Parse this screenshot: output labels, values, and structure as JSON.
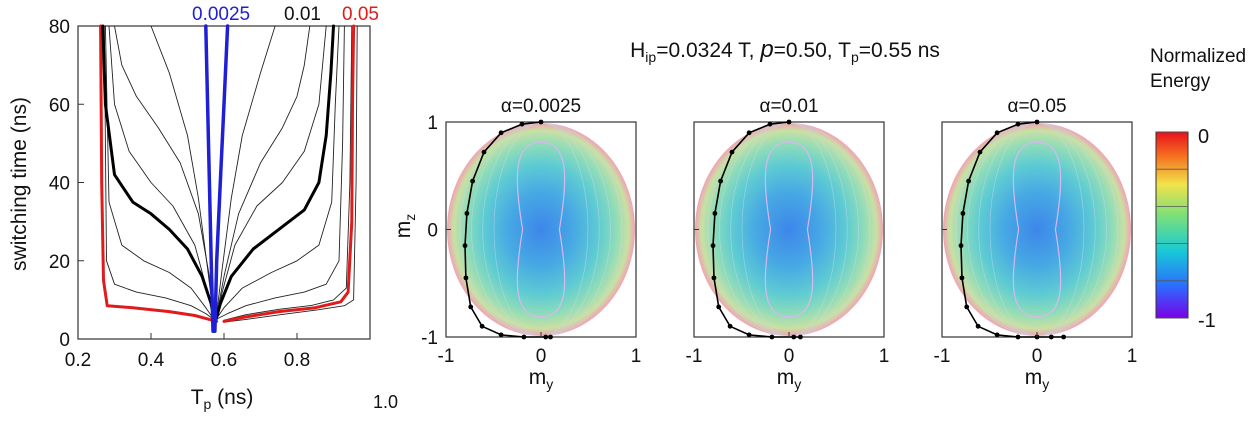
{
  "chart_data": [
    {
      "type": "line",
      "title": "",
      "xlabel": "T",
      "xlabel_sub": "p",
      "xlabel_unit": " (ns)",
      "ylabel": "switching time (ns)",
      "xlim": [
        0.2,
        1.0
      ],
      "ylim": [
        0,
        80
      ],
      "x_ticks": [
        "0.2",
        "0.4",
        "0.6",
        "0.8"
      ],
      "x_tick_values": [
        0.2,
        0.4,
        0.6,
        0.8
      ],
      "x_extra_tick": "1.0",
      "y_ticks": [
        "0",
        "20",
        "40",
        "60",
        "80"
      ],
      "y_tick_values": [
        0,
        20,
        40,
        60,
        80
      ],
      "grid": false,
      "series": [
        {
          "name": "0.0025",
          "color": "#1f1fd6",
          "width": 3.5,
          "x": [
            0.55,
            0.555,
            0.56,
            0.565,
            0.57
          ],
          "y": [
            80,
            60,
            40,
            20,
            2
          ]
        },
        {
          "name": "0.0025",
          "color": "#1f1fd6",
          "width": 3.5,
          "x": [
            0.61,
            0.6,
            0.59,
            0.58,
            0.575
          ],
          "y": [
            80,
            60,
            40,
            20,
            2
          ]
        },
        {
          "name": "0.01",
          "color": "#000000",
          "width": 3,
          "x": [
            0.268,
            0.275,
            0.3,
            0.35,
            0.4,
            0.45,
            0.5,
            0.54,
            0.565,
            0.572
          ],
          "y": [
            80,
            60,
            42,
            35,
            32,
            28,
            23,
            16,
            9,
            5
          ]
        },
        {
          "name": "0.01",
          "color": "#000000",
          "width": 3,
          "x": [
            0.578,
            0.59,
            0.62,
            0.68,
            0.75,
            0.82,
            0.86,
            0.88,
            0.893,
            0.9
          ],
          "y": [
            5,
            9,
            16,
            23,
            28,
            33,
            40,
            52,
            68,
            80
          ]
        },
        {
          "name": "0.05",
          "color": "#e01b1b",
          "width": 3,
          "x": [
            0.262,
            0.265,
            0.27,
            0.28,
            0.35,
            0.45,
            0.52,
            0.56,
            0.58
          ],
          "y": [
            80,
            40,
            15,
            8.5,
            8,
            7,
            6,
            5,
            4.5
          ]
        },
        {
          "name": "0.05",
          "color": "#e01b1b",
          "width": 3,
          "x": [
            0.6,
            0.65,
            0.75,
            0.85,
            0.92,
            0.94,
            0.95,
            0.952,
            0.955
          ],
          "y": [
            4.5,
            5.5,
            7,
            8,
            9.5,
            12,
            30,
            60,
            80
          ]
        },
        {
          "name": "",
          "color": "#222222",
          "width": 0.9,
          "x": [
            0.3,
            0.32,
            0.36,
            0.42,
            0.48,
            0.53,
            0.56,
            0.572
          ],
          "y": [
            80,
            70,
            62,
            54,
            45,
            32,
            16,
            5
          ]
        },
        {
          "name": "",
          "color": "#222222",
          "width": 0.9,
          "x": [
            0.578,
            0.6,
            0.64,
            0.7,
            0.76,
            0.8,
            0.82,
            0.835
          ],
          "y": [
            5,
            16,
            32,
            45,
            54,
            62,
            70,
            80
          ]
        },
        {
          "name": "",
          "color": "#222222",
          "width": 0.9,
          "x": [
            0.4,
            0.45,
            0.5,
            0.53,
            0.555,
            0.572
          ],
          "y": [
            80,
            68,
            52,
            36,
            18,
            5
          ]
        },
        {
          "name": "",
          "color": "#222222",
          "width": 0.9,
          "x": [
            0.578,
            0.595,
            0.62,
            0.65,
            0.7,
            0.74
          ],
          "y": [
            5,
            18,
            36,
            52,
            68,
            80
          ]
        },
        {
          "name": "",
          "color": "#222222",
          "width": 0.9,
          "x": [
            0.285,
            0.3,
            0.34,
            0.4,
            0.46,
            0.52,
            0.555,
            0.572
          ],
          "y": [
            80,
            60,
            48,
            40,
            34,
            24,
            12,
            5
          ]
        },
        {
          "name": "",
          "color": "#222222",
          "width": 0.9,
          "x": [
            0.578,
            0.595,
            0.63,
            0.69,
            0.76,
            0.82,
            0.86,
            0.88
          ],
          "y": [
            5,
            12,
            24,
            34,
            40,
            48,
            60,
            80
          ]
        },
        {
          "name": "",
          "color": "#222222",
          "width": 0.9,
          "x": [
            0.275,
            0.285,
            0.32,
            0.38,
            0.45,
            0.51,
            0.55,
            0.572
          ],
          "y": [
            80,
            35,
            24,
            20,
            17,
            13,
            8,
            5
          ]
        },
        {
          "name": "",
          "color": "#222222",
          "width": 0.9,
          "x": [
            0.578,
            0.6,
            0.65,
            0.73,
            0.8,
            0.86,
            0.895,
            0.905,
            0.915
          ],
          "y": [
            5,
            8,
            13,
            17,
            20,
            24,
            35,
            60,
            80
          ]
        },
        {
          "name": "",
          "color": "#222222",
          "width": 0.9,
          "x": [
            0.272,
            0.278,
            0.3,
            0.36,
            0.44,
            0.51,
            0.55,
            0.572
          ],
          "y": [
            80,
            20,
            14,
            12,
            10.5,
            8.5,
            6.5,
            5
          ]
        },
        {
          "name": "",
          "color": "#222222",
          "width": 0.9,
          "x": [
            0.578,
            0.61,
            0.66,
            0.74,
            0.82,
            0.88,
            0.915,
            0.925,
            0.93
          ],
          "y": [
            5,
            6.5,
            8.5,
            10.5,
            12,
            14,
            20,
            50,
            80
          ]
        },
        {
          "name": "",
          "color": "#222222",
          "width": 0.9,
          "x": [
            0.6,
            0.66,
            0.75,
            0.84,
            0.9,
            0.935,
            0.945,
            0.95
          ],
          "y": [
            4.8,
            6.2,
            7.6,
            8.6,
            10,
            13,
            40,
            80
          ]
        },
        {
          "name": "",
          "color": "#222222",
          "width": 0.9,
          "x": [
            0.6,
            0.66,
            0.76,
            0.86,
            0.93,
            0.955,
            0.962,
            0.965
          ],
          "y": [
            4.3,
            5,
            6.3,
            7.5,
            8.5,
            10,
            40,
            80
          ]
        }
      ]
    },
    {
      "type": "heatmap",
      "title": "H",
      "title_sub": "ip",
      "title_rest": "=0.0324 T, ",
      "title_p": "p",
      "title_p_rest": "=0.50, T",
      "title_p_sub": "p",
      "title_end": "=0.55 ns",
      "xlabel": "m",
      "xlabel_sub": "y",
      "ylabel": "m",
      "ylabel_sub": "z",
      "xlim": [
        -1,
        1
      ],
      "ylim": [
        -1,
        1
      ],
      "x_ticks": [
        "-1",
        "0",
        "1"
      ],
      "x_tick_values": [
        -1,
        0,
        1
      ],
      "y_ticks": [
        "-1",
        "0",
        "1"
      ],
      "y_tick_values": [
        -1,
        0,
        1
      ],
      "panels": [
        {
          "label": "α=0.0025",
          "trajectory": {
            "my": [
              0.0,
              -0.2,
              -0.42,
              -0.6,
              -0.72,
              -0.78,
              -0.8,
              -0.79,
              -0.74,
              -0.62,
              -0.42,
              -0.18,
              0.05,
              0.1
            ],
            "mz": [
              1.0,
              0.98,
              0.9,
              0.72,
              0.45,
              0.15,
              -0.15,
              -0.45,
              -0.72,
              -0.9,
              -0.98,
              -1.0,
              -1.0,
              -1.0
            ]
          }
        },
        {
          "label": "α=0.01",
          "trajectory": {
            "my": [
              0.0,
              -0.2,
              -0.42,
              -0.6,
              -0.72,
              -0.78,
              -0.8,
              -0.79,
              -0.74,
              -0.62,
              -0.42,
              -0.18,
              0.05,
              0.12
            ],
            "mz": [
              1.0,
              0.98,
              0.9,
              0.72,
              0.45,
              0.15,
              -0.15,
              -0.45,
              -0.72,
              -0.9,
              -0.98,
              -1.0,
              -1.0,
              -1.0
            ]
          }
        },
        {
          "label": "α=0.05",
          "trajectory": {
            "my": [
              0.0,
              -0.2,
              -0.42,
              -0.6,
              -0.72,
              -0.78,
              -0.8,
              -0.79,
              -0.74,
              -0.62,
              -0.42,
              -0.2,
              0.0,
              0.15,
              0.28
            ],
            "mz": [
              1.0,
              0.98,
              0.9,
              0.72,
              0.45,
              0.15,
              -0.15,
              -0.45,
              -0.72,
              -0.9,
              -0.98,
              -1.0,
              -1.0,
              -1.0,
              -1.0
            ]
          }
        }
      ],
      "colorbar": {
        "title_line1": "Normalized",
        "title_line2": "Energy",
        "min": -1,
        "max": 0,
        "min_label": "-1",
        "max_label": "0",
        "colors": [
          "#7a00e6",
          "#2b6cff",
          "#18c9d6",
          "#7be07a",
          "#f2e24a",
          "#f5701f",
          "#e8101e"
        ]
      }
    }
  ]
}
